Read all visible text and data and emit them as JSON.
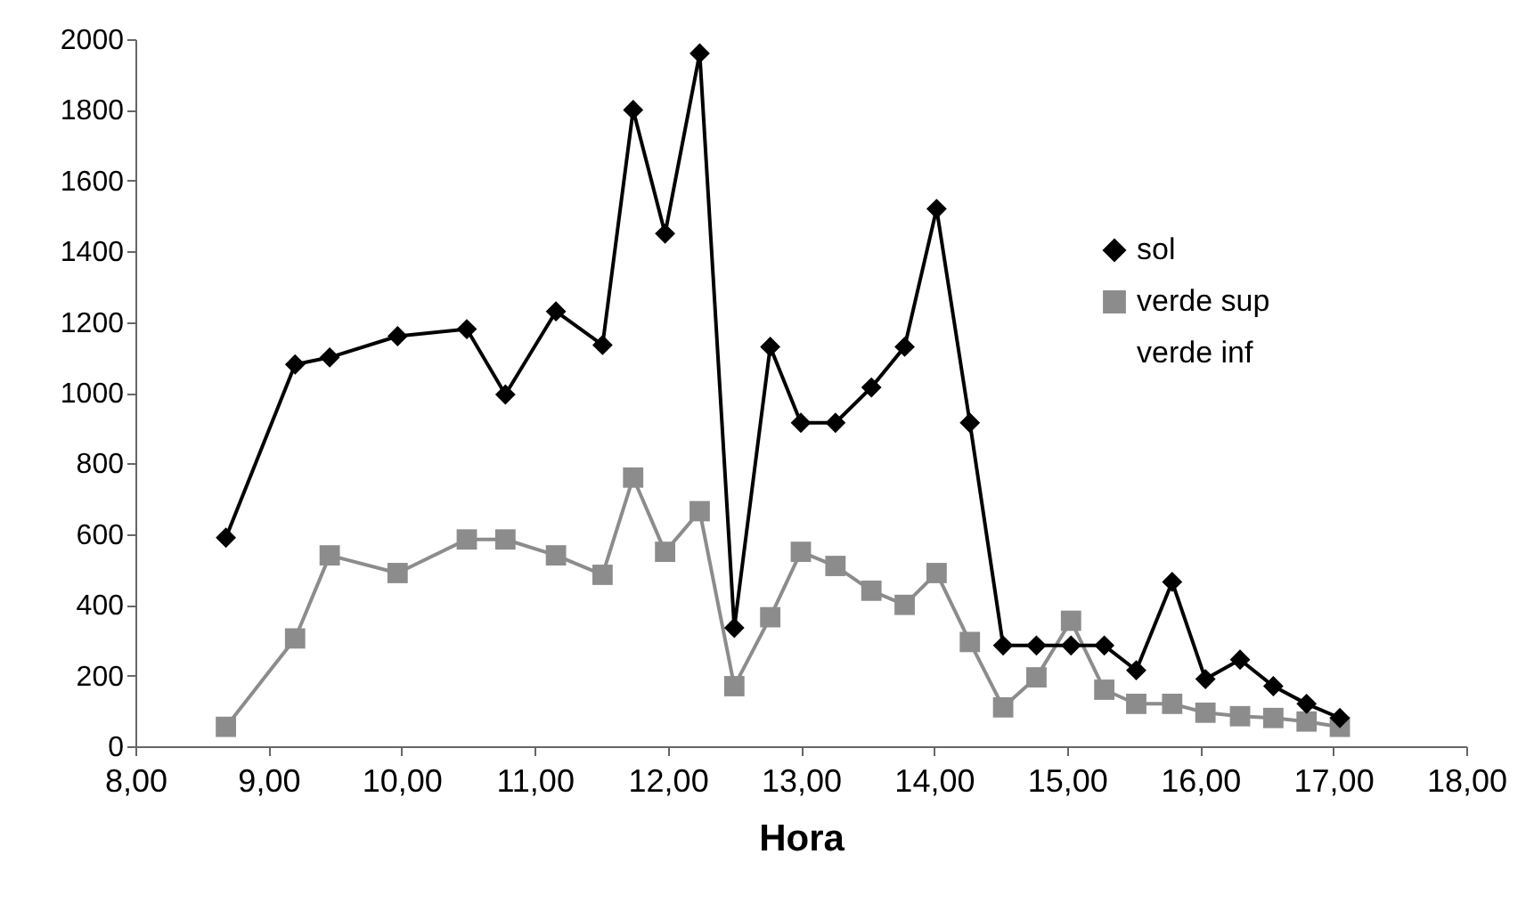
{
  "chart_data": {
    "type": "line",
    "xlabel": "Hora",
    "x": [
      8.68,
      9.2,
      9.46,
      9.97,
      10.49,
      10.78,
      11.16,
      11.51,
      11.74,
      11.98,
      12.24,
      12.5,
      12.77,
      13.0,
      13.26,
      13.53,
      13.78,
      14.02,
      14.27,
      14.52,
      14.77,
      15.03,
      15.28,
      15.52,
      15.79,
      16.04,
      16.3,
      16.55,
      16.8,
      17.05
    ],
    "series": [
      {
        "name": "sol",
        "color": "#000000",
        "marker": "diamond",
        "values": [
          590,
          1080,
          1100,
          1160,
          1180,
          995,
          1230,
          1135,
          1800,
          1450,
          1960,
          335,
          1130,
          915,
          915,
          1015,
          1130,
          1520,
          915,
          285,
          285,
          285,
          285,
          215,
          465,
          190,
          245,
          170,
          120,
          80
        ]
      },
      {
        "name": "verde sup",
        "color": "#8c8c8c",
        "marker": "square",
        "values": [
          55,
          305,
          540,
          490,
          585,
          585,
          540,
          485,
          760,
          550,
          665,
          170,
          365,
          550,
          510,
          440,
          400,
          490,
          295,
          110,
          195,
          355,
          160,
          120,
          120,
          95,
          85,
          80,
          70,
          55
        ]
      },
      {
        "name": "verde inf",
        "marker": "none",
        "values": [
          null,
          null,
          null,
          null,
          null,
          null,
          null,
          null,
          null,
          null,
          null,
          null,
          null,
          null,
          null,
          null,
          null,
          null,
          null,
          null,
          null,
          null,
          null,
          null,
          null,
          null,
          null,
          null,
          null,
          null
        ]
      }
    ],
    "xlim": [
      8,
      18
    ],
    "xticks": [
      {
        "value": 8,
        "label": "8,00"
      },
      {
        "value": 9,
        "label": "9,00"
      },
      {
        "value": 10,
        "label": "10,00"
      },
      {
        "value": 11,
        "label": "11,00"
      },
      {
        "value": 12,
        "label": "12,00"
      },
      {
        "value": 13,
        "label": "13,00"
      },
      {
        "value": 14,
        "label": "14,00"
      },
      {
        "value": 15,
        "label": "15,00"
      },
      {
        "value": 16,
        "label": "16,00"
      },
      {
        "value": 17,
        "label": "17,00"
      },
      {
        "value": 18,
        "label": "18,00"
      }
    ],
    "ylim": [
      0,
      2000
    ],
    "yticks": [
      0,
      200,
      400,
      600,
      800,
      1000,
      1200,
      1400,
      1600,
      1800,
      2000
    ],
    "grid": false,
    "legend": "top right"
  }
}
